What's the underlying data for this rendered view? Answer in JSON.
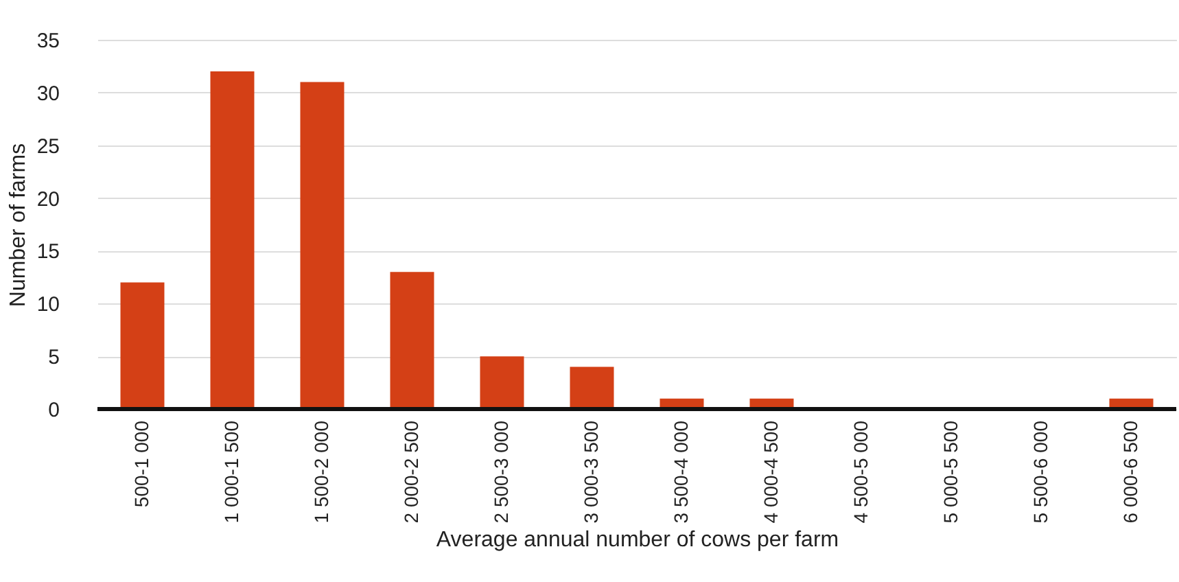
{
  "chart_data": {
    "type": "bar",
    "xlabel": "Average annual number of cows per farm",
    "ylabel": "Number of farms",
    "categories": [
      "500-1 000",
      "1 000-1 500",
      "1 500-2 000",
      "2 000-2 500",
      "2 500-3 000",
      "3 000-3 500",
      "3 500-4 000",
      "4 000-4 500",
      "4 500-5 000",
      "5 000-5 500",
      "5 500-6 000",
      "6 000-6 500"
    ],
    "values": [
      12,
      32,
      31,
      13,
      5,
      4,
      1,
      1,
      0,
      0,
      0,
      1
    ],
    "color": "#d44016",
    "ylim": [
      0,
      35
    ],
    "yticks": [
      0,
      5,
      10,
      15,
      20,
      25,
      30,
      35
    ],
    "grid": "y"
  }
}
